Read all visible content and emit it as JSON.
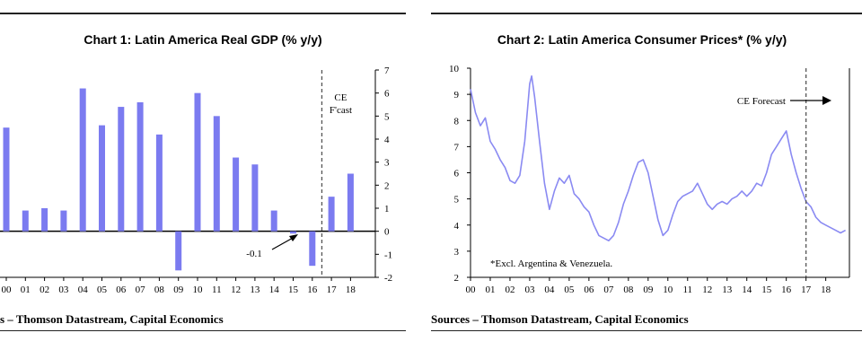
{
  "charts": [
    {
      "title": "Chart 1: Latin America Real GDP (% y/y)",
      "source": "s – Thomson Datastream, Capital Economics"
    },
    {
      "title": "Chart 2: Latin America Consumer Prices* (% y/y)",
      "source": "Sources – Thomson Datastream, Capital Economics"
    }
  ],
  "chart_data": [
    {
      "type": "bar",
      "title": "Chart 1: Latin America Real GDP (% y/y)",
      "categories": [
        "00",
        "01",
        "02",
        "03",
        "04",
        "05",
        "06",
        "07",
        "08",
        "09",
        "10",
        "11",
        "12",
        "13",
        "14",
        "15",
        "16",
        "17",
        "18"
      ],
      "values": [
        4.5,
        0.9,
        1.0,
        0.9,
        6.2,
        4.6,
        5.4,
        5.6,
        4.2,
        -1.7,
        6.0,
        5.0,
        3.2,
        2.9,
        0.9,
        -0.1,
        -1.5,
        1.5,
        2.5
      ],
      "forecast_from": "17",
      "ylim": [
        -2,
        7
      ],
      "yticks": [
        -2,
        -1,
        0,
        1,
        2,
        3,
        4,
        5,
        6,
        7
      ],
      "annotations": [
        {
          "text_lines": [
            "CE",
            "F'cast"
          ]
        },
        {
          "text": "-0.1"
        }
      ],
      "color": "#7b7bf0"
    },
    {
      "type": "line",
      "title": "Chart 2: Latin America Consumer Prices* (% y/y)",
      "x_ticks": [
        "00",
        "01",
        "02",
        "03",
        "04",
        "05",
        "06",
        "07",
        "08",
        "09",
        "10",
        "11",
        "12",
        "13",
        "14",
        "15",
        "16",
        "17",
        "18"
      ],
      "x_range": [
        2000,
        2019.2
      ],
      "ylim": [
        2,
        10
      ],
      "yticks": [
        2,
        3,
        4,
        5,
        6,
        7,
        8,
        9,
        10
      ],
      "forecast_from": 2017,
      "series": [
        {
          "color": "#8a8af2",
          "x": [
            2000.0,
            2000.25,
            2000.5,
            2000.75,
            2001.0,
            2001.25,
            2001.5,
            2001.75,
            2002.0,
            2002.25,
            2002.5,
            2002.75,
            2003.0,
            2003.1,
            2003.25,
            2003.5,
            2003.75,
            2004.0,
            2004.25,
            2004.5,
            2004.75,
            2005.0,
            2005.25,
            2005.5,
            2005.75,
            2006.0,
            2006.25,
            2006.5,
            2006.75,
            2007.0,
            2007.25,
            2007.5,
            2007.75,
            2008.0,
            2008.25,
            2008.5,
            2008.75,
            2009.0,
            2009.25,
            2009.5,
            2009.75,
            2010.0,
            2010.25,
            2010.5,
            2010.75,
            2011.0,
            2011.25,
            2011.5,
            2011.75,
            2012.0,
            2012.25,
            2012.5,
            2012.75,
            2013.0,
            2013.25,
            2013.5,
            2013.75,
            2014.0,
            2014.25,
            2014.5,
            2014.75,
            2015.0,
            2015.25,
            2015.5,
            2015.75,
            2016.0,
            2016.25,
            2016.5,
            2016.75,
            2017.0,
            2017.25,
            2017.5,
            2017.75,
            2018.0,
            2018.25,
            2018.5,
            2018.75,
            2019.0
          ],
          "y": [
            9.2,
            8.3,
            7.8,
            8.1,
            7.2,
            6.9,
            6.5,
            6.2,
            5.7,
            5.6,
            5.9,
            7.2,
            9.4,
            9.7,
            8.9,
            7.2,
            5.6,
            4.6,
            5.3,
            5.8,
            5.6,
            5.9,
            5.2,
            5.0,
            4.7,
            4.5,
            4.0,
            3.6,
            3.5,
            3.4,
            3.6,
            4.1,
            4.8,
            5.3,
            5.9,
            6.4,
            6.5,
            6.0,
            5.1,
            4.2,
            3.6,
            3.8,
            4.4,
            4.9,
            5.1,
            5.2,
            5.3,
            5.6,
            5.2,
            4.8,
            4.6,
            4.8,
            4.9,
            4.8,
            5.0,
            5.1,
            5.3,
            5.1,
            5.3,
            5.6,
            5.5,
            6.0,
            6.7,
            7.0,
            7.3,
            7.6,
            6.7,
            6.0,
            5.4,
            4.9,
            4.7,
            4.3,
            4.1,
            4.0,
            3.9,
            3.8,
            3.7,
            3.8
          ]
        }
      ],
      "annotations": [
        {
          "text": "CE Forecast"
        },
        {
          "text": "*Excl. Argentina & Venezuela."
        }
      ]
    }
  ]
}
